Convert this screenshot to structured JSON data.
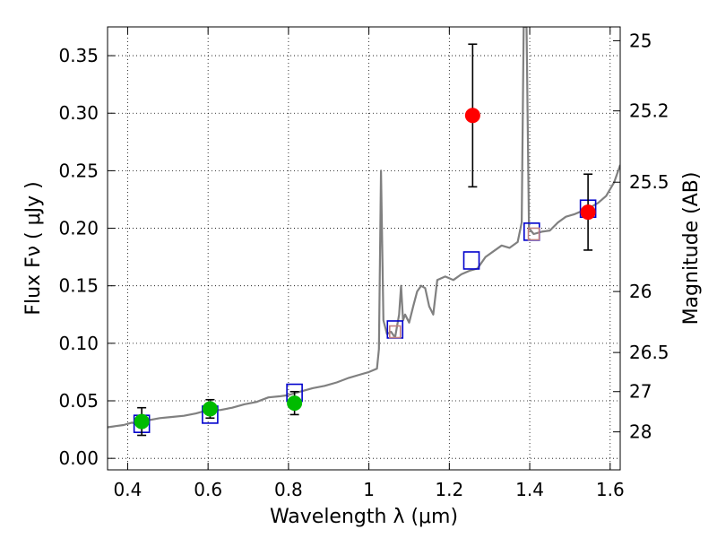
{
  "chart_data": {
    "type": "scatter",
    "xlabel": "Wavelength  λ (μm)",
    "ylabel": "Flux  Fν  ( μJy )",
    "y2label": "Magnitude (AB)",
    "xlim": [
      0.35,
      1.625
    ],
    "ylim": [
      -0.01,
      0.375
    ],
    "grid": true,
    "x_ticks": [
      0.4,
      0.6,
      0.8,
      1.0,
      1.2,
      1.4,
      1.6
    ],
    "x_tick_labels": [
      "0.4",
      "0.6",
      "0.8",
      "1",
      "1.2",
      "1.4",
      "1.6"
    ],
    "y_ticks": [
      0.0,
      0.05,
      0.1,
      0.15,
      0.2,
      0.25,
      0.3,
      0.35
    ],
    "y_tick_labels": [
      "0.00",
      "0.05",
      "0.10",
      "0.15",
      "0.20",
      "0.25",
      "0.30",
      "0.35"
    ],
    "mag_ticks": [
      {
        "flux": 0.363,
        "label": "25"
      },
      {
        "flux": 0.302,
        "label": "25.2"
      },
      {
        "flux": 0.24,
        "label": "25.5"
      },
      {
        "flux": 0.145,
        "label": "26"
      },
      {
        "flux": 0.092,
        "label": "26.5"
      },
      {
        "flux": 0.058,
        "label": "27"
      },
      {
        "flux": 0.023,
        "label": "28"
      }
    ],
    "series": [
      {
        "kind": "spectrum",
        "color": "#808080",
        "points": [
          [
            0.35,
            0.027
          ],
          [
            0.37,
            0.028
          ],
          [
            0.39,
            0.029
          ],
          [
            0.41,
            0.031
          ],
          [
            0.43,
            0.03
          ],
          [
            0.45,
            0.033
          ],
          [
            0.48,
            0.035
          ],
          [
            0.51,
            0.036
          ],
          [
            0.54,
            0.037
          ],
          [
            0.57,
            0.039
          ],
          [
            0.6,
            0.042
          ],
          [
            0.63,
            0.042
          ],
          [
            0.66,
            0.044
          ],
          [
            0.69,
            0.047
          ],
          [
            0.72,
            0.049
          ],
          [
            0.75,
            0.053
          ],
          [
            0.78,
            0.054
          ],
          [
            0.8,
            0.055
          ],
          [
            0.83,
            0.058
          ],
          [
            0.86,
            0.061
          ],
          [
            0.89,
            0.063
          ],
          [
            0.92,
            0.066
          ],
          [
            0.95,
            0.07
          ],
          [
            0.98,
            0.073
          ],
          [
            1.0,
            0.075
          ],
          [
            1.02,
            0.078
          ],
          [
            1.025,
            0.095
          ],
          [
            1.03,
            0.25
          ],
          [
            1.036,
            0.12
          ],
          [
            1.045,
            0.108
          ],
          [
            1.055,
            0.11
          ],
          [
            1.065,
            0.105
          ],
          [
            1.075,
            0.125
          ],
          [
            1.08,
            0.15
          ],
          [
            1.085,
            0.12
          ],
          [
            1.09,
            0.125
          ],
          [
            1.1,
            0.118
          ],
          [
            1.11,
            0.132
          ],
          [
            1.12,
            0.145
          ],
          [
            1.13,
            0.15
          ],
          [
            1.14,
            0.148
          ],
          [
            1.15,
            0.132
          ],
          [
            1.16,
            0.125
          ],
          [
            1.17,
            0.155
          ],
          [
            1.19,
            0.158
          ],
          [
            1.21,
            0.155
          ],
          [
            1.23,
            0.16
          ],
          [
            1.25,
            0.163
          ],
          [
            1.27,
            0.165
          ],
          [
            1.29,
            0.175
          ],
          [
            1.31,
            0.18
          ],
          [
            1.33,
            0.185
          ],
          [
            1.35,
            0.183
          ],
          [
            1.37,
            0.188
          ],
          [
            1.38,
            0.205
          ],
          [
            1.385,
            0.375
          ],
          [
            1.392,
            0.375
          ],
          [
            1.398,
            0.2
          ],
          [
            1.41,
            0.195
          ],
          [
            1.43,
            0.197
          ],
          [
            1.45,
            0.198
          ],
          [
            1.47,
            0.205
          ],
          [
            1.49,
            0.21
          ],
          [
            1.51,
            0.212
          ],
          [
            1.53,
            0.215
          ],
          [
            1.55,
            0.218
          ],
          [
            1.57,
            0.222
          ],
          [
            1.59,
            0.228
          ],
          [
            1.61,
            0.24
          ],
          [
            1.625,
            0.255
          ]
        ]
      },
      {
        "kind": "model-box",
        "color": "#0000cc",
        "points": [
          [
            0.435,
            0.03
          ],
          [
            0.605,
            0.038
          ],
          [
            0.815,
            0.057
          ],
          [
            1.065,
            0.112
          ],
          [
            1.255,
            0.172
          ],
          [
            1.405,
            0.197
          ],
          [
            1.545,
            0.217
          ]
        ]
      },
      {
        "kind": "model-box-inner",
        "color": "#c08080",
        "points": [
          [
            1.065,
            0.11
          ],
          [
            1.41,
            0.195
          ]
        ]
      },
      {
        "kind": "measured",
        "color": "#00bb00",
        "points": [
          {
            "x": 0.435,
            "y": 0.032,
            "err": 0.012
          },
          {
            "x": 0.605,
            "y": 0.043,
            "err": 0.008
          },
          {
            "x": 0.815,
            "y": 0.048,
            "err": 0.01
          }
        ]
      },
      {
        "kind": "measured",
        "color": "#ff0000",
        "points": [
          {
            "x": 1.258,
            "y": 0.298,
            "err": 0.062
          },
          {
            "x": 1.545,
            "y": 0.214,
            "err": 0.033
          }
        ]
      }
    ]
  }
}
